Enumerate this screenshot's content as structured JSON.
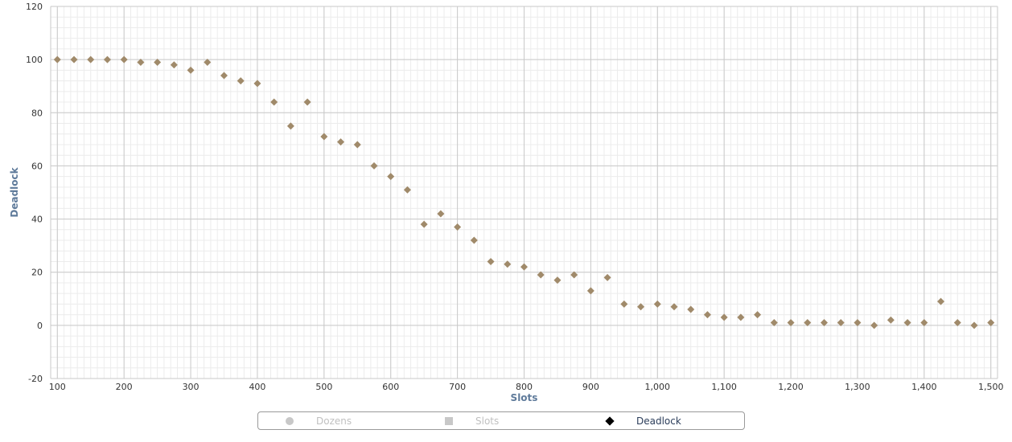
{
  "chart_data": {
    "type": "scatter",
    "xlabel": "Slots",
    "ylabel": "Deadlock",
    "xlim": [
      90,
      1510
    ],
    "ylim": [
      -20,
      120
    ],
    "x_ticks": [
      100,
      200,
      300,
      400,
      500,
      600,
      700,
      800,
      900,
      1000,
      1100,
      1200,
      1300,
      1400,
      1500
    ],
    "x_tick_labels": [
      "100",
      "200",
      "300",
      "400",
      "500",
      "600",
      "700",
      "800",
      "900",
      "1,000",
      "1,100",
      "1,200",
      "1,300",
      "1,400",
      "1,500"
    ],
    "y_ticks": [
      -20,
      0,
      20,
      40,
      60,
      80,
      100,
      120
    ],
    "y_tick_labels": [
      "-20",
      "0",
      "20",
      "40",
      "60",
      "80",
      "100",
      "120"
    ],
    "grid": true,
    "marker_color": "#a08a6a",
    "legend_position": "bottom-center",
    "legend": [
      {
        "label": "Dozens",
        "symbol": "circle",
        "active": false
      },
      {
        "label": "Slots",
        "symbol": "square",
        "active": false
      },
      {
        "label": "Deadlock",
        "symbol": "diamond",
        "active": true
      }
    ],
    "series": [
      {
        "name": "Deadlock",
        "x": [
          100,
          125,
          150,
          175,
          200,
          225,
          250,
          275,
          300,
          325,
          350,
          375,
          400,
          425,
          450,
          475,
          500,
          525,
          550,
          575,
          600,
          625,
          650,
          675,
          700,
          725,
          750,
          775,
          800,
          825,
          850,
          875,
          900,
          925,
          950,
          975,
          1000,
          1025,
          1050,
          1075,
          1100,
          1125,
          1150,
          1175,
          1200,
          1225,
          1250,
          1275,
          1300,
          1325,
          1350,
          1375,
          1400,
          1425,
          1450,
          1475,
          1500
        ],
        "y": [
          100,
          100,
          100,
          100,
          100,
          99,
          99,
          98,
          96,
          99,
          94,
          92,
          91,
          84,
          75,
          84,
          71,
          69,
          68,
          60,
          56,
          51,
          38,
          42,
          37,
          32,
          24,
          23,
          22,
          19,
          17,
          19,
          13,
          18,
          8,
          7,
          8,
          7,
          6,
          4,
          3,
          3,
          4,
          1,
          1,
          1,
          1,
          1,
          1,
          0,
          2,
          1,
          1,
          9,
          1,
          0,
          1
        ]
      }
    ]
  }
}
